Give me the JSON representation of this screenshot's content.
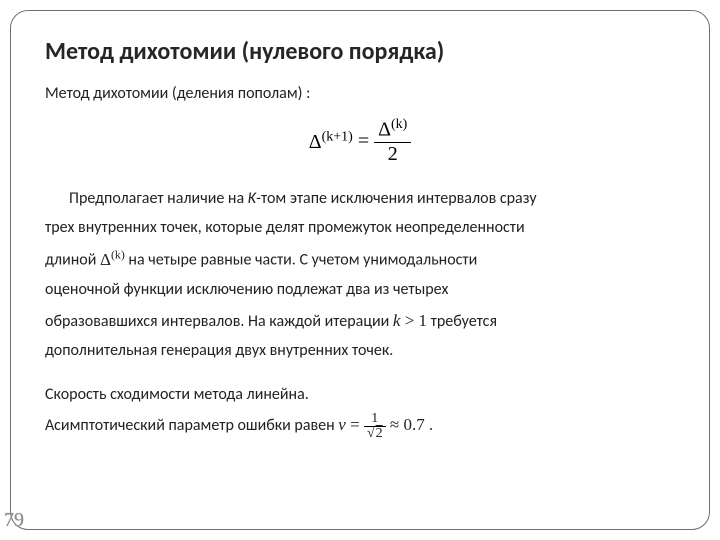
{
  "page_number": "79",
  "title": "Метод дихотомии (нулевого порядка)",
  "subtitle": "Метод дихотомии (деления пополам) :",
  "main_formula": {
    "lhs_delta": "Δ",
    "lhs_exp": "(k+1)",
    "rhs_num_delta": "Δ",
    "rhs_num_exp": "(k)",
    "rhs_den": "2",
    "eq": " = "
  },
  "para1_a": "Предполагает наличие на ",
  "para1_k": "K",
  "para1_b": "-том этапе исключения интервалов сразу",
  "para2": "трех внутренних точек, которые делят промежуток неопределенности",
  "para3_a": "длиной ",
  "para3_delta": "Δ",
  "para3_exp": "(k)",
  "para3_b": " на четыре равные части. С учетом унимодальности",
  "para4": "оценочной функции исключению подлежат два из четырех",
  "para5_a": "образовавшихся интервалов. На каждой итерации ",
  "para5_k": "k",
  "para5_gt": " > 1",
  "para5_b": "   требуется",
  "para6": "дополнительная генерация двух внутренних точек.",
  "para7": "Скорость сходимости метода линейна.",
  "para8_a": "Асимптотический параметр ошибки равен ",
  "final_formula": {
    "v": "ν",
    "eq1": " = ",
    "num": "1",
    "den_radic": "√",
    "den_val": "2",
    "approx": " ≈ 0.7",
    "dot": "."
  }
}
